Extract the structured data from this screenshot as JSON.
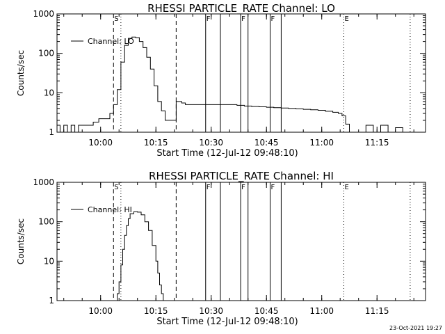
{
  "chart_data": [
    {
      "type": "line",
      "title": "RHESSI PARTICLE_RATE Channel: LO",
      "xlabel": "Start Time (12-Jul-12 09:48:10)",
      "ylabel": "Counts/sec",
      "y_scale": "log",
      "ylim": [
        1,
        1000
      ],
      "xlim": [
        "09:48:10",
        "11:28:10"
      ],
      "x_ticks": [
        "10:00",
        "10:15",
        "10:30",
        "10:45",
        "11:00",
        "11:15"
      ],
      "y_ticks": [
        "1",
        "10",
        "100",
        "1000"
      ],
      "legend": {
        "position": "top-left",
        "entries": [
          "Channel: LO"
        ]
      },
      "series": [
        {
          "name": "Channel: LO",
          "x": [
            "09:48:10",
            "09:49:00",
            "09:50:00",
            "09:51:00",
            "09:52:00",
            "09:53:00",
            "09:54:00",
            "09:56:00",
            "09:58:00",
            "09:59:30",
            "10:01:00",
            "10:02:30",
            "10:03:30",
            "10:04:30",
            "10:05:30",
            "10:06:30",
            "10:07:30",
            "10:08:30",
            "10:09:30",
            "10:10:30",
            "10:11:30",
            "10:12:30",
            "10:13:30",
            "10:14:30",
            "10:15:30",
            "10:16:30",
            "10:17:30",
            "10:18:30",
            "10:19:30",
            "10:20:30",
            "10:22:00",
            "10:23:00",
            "10:25:00",
            "10:27:00",
            "10:29:00",
            "10:31:00",
            "10:33:00",
            "10:35:00",
            "10:37:00",
            "10:39:00",
            "10:41:00",
            "10:43:00",
            "10:45:00",
            "10:47:00",
            "10:49:00",
            "10:51:00",
            "10:53:00",
            "10:55:00",
            "10:57:00",
            "10:59:00",
            "11:01:00",
            "11:03:00",
            "11:04:30",
            "11:05:30",
            "11:06:30",
            "11:07:30",
            "11:08:30",
            "11:10:00",
            "11:12:00",
            "11:14:00",
            "11:16:00",
            "11:18:00",
            "11:20:00",
            "11:22:00"
          ],
          "values": [
            1.5,
            1,
            1.5,
            1,
            1.5,
            1,
            1.5,
            1.5,
            1.8,
            2.2,
            2.2,
            3,
            5,
            12,
            60,
            160,
            240,
            260,
            250,
            200,
            140,
            80,
            40,
            15,
            6,
            3.5,
            2,
            2,
            2,
            6,
            5.5,
            5,
            5,
            5,
            5,
            5,
            5,
            5,
            4.8,
            4.6,
            4.5,
            4.4,
            4.3,
            4.2,
            4.1,
            4,
            3.9,
            3.8,
            3.7,
            3.6,
            3.4,
            3.2,
            3,
            2.6,
            1.6,
            1,
            1,
            1,
            1.5,
            1,
            1.5,
            1,
            1.3,
            1
          ]
        }
      ],
      "markers": [
        {
          "time": "10:03:30",
          "label": "S",
          "style": "dashed"
        },
        {
          "time": "10:20:30",
          "label": "",
          "style": "dashed"
        },
        {
          "time": "10:05:30",
          "label": "",
          "style": "dotted"
        },
        {
          "time": "10:28:30",
          "label": "F",
          "style": "solid"
        },
        {
          "time": "10:32:30",
          "label": "",
          "style": "solid"
        },
        {
          "time": "10:38:00",
          "label": "F",
          "style": "solid"
        },
        {
          "time": "10:40:00",
          "label": "",
          "style": "solid"
        },
        {
          "time": "10:46:00",
          "label": "F",
          "style": "solid"
        },
        {
          "time": "10:49:00",
          "label": "",
          "style": "solid"
        },
        {
          "time": "11:06:00",
          "label": "E",
          "style": "dotted"
        },
        {
          "time": "11:24:00",
          "label": "",
          "style": "dotted"
        }
      ]
    },
    {
      "type": "line",
      "title": "RHESSI PARTICLE_RATE Channel: HI",
      "xlabel": "Start Time (12-Jul-12 09:48:10)",
      "ylabel": "Counts/sec",
      "y_scale": "log",
      "ylim": [
        1,
        1000
      ],
      "xlim": [
        "09:48:10",
        "11:28:10"
      ],
      "x_ticks": [
        "10:00",
        "10:15",
        "10:30",
        "10:45",
        "11:00",
        "11:15"
      ],
      "y_ticks": [
        "1",
        "10",
        "100",
        "1000"
      ],
      "legend": {
        "position": "top-left",
        "entries": [
          "Channel: HI"
        ]
      },
      "series": [
        {
          "name": "Channel: HI",
          "x": [
            "10:04:00",
            "10:04:30",
            "10:05:00",
            "10:05:30",
            "10:06:00",
            "10:06:30",
            "10:07:00",
            "10:07:30",
            "10:08:00",
            "10:09:00",
            "10:10:00",
            "10:11:00",
            "10:12:00",
            "10:13:00",
            "10:14:00",
            "10:15:00",
            "10:15:30",
            "10:16:00",
            "10:16:30",
            "10:17:00"
          ],
          "values": [
            1,
            1.5,
            3,
            8,
            20,
            45,
            80,
            120,
            160,
            180,
            175,
            150,
            100,
            60,
            25,
            10,
            5,
            2.5,
            1.5,
            1
          ]
        }
      ],
      "markers": [
        {
          "time": "10:03:30",
          "label": "S",
          "style": "dashed"
        },
        {
          "time": "10:20:30",
          "label": "",
          "style": "dashed"
        },
        {
          "time": "10:05:30",
          "label": "",
          "style": "dotted"
        },
        {
          "time": "10:28:30",
          "label": "F",
          "style": "solid"
        },
        {
          "time": "10:32:30",
          "label": "",
          "style": "solid"
        },
        {
          "time": "10:38:00",
          "label": "F",
          "style": "solid"
        },
        {
          "time": "10:40:00",
          "label": "",
          "style": "solid"
        },
        {
          "time": "10:46:00",
          "label": "F",
          "style": "solid"
        },
        {
          "time": "10:49:00",
          "label": "",
          "style": "solid"
        },
        {
          "time": "11:06:00",
          "label": "E",
          "style": "dotted"
        },
        {
          "time": "11:24:00",
          "label": "",
          "style": "dotted"
        }
      ]
    }
  ],
  "footer": {
    "timestamp": "23-Oct-2021 19:27"
  }
}
